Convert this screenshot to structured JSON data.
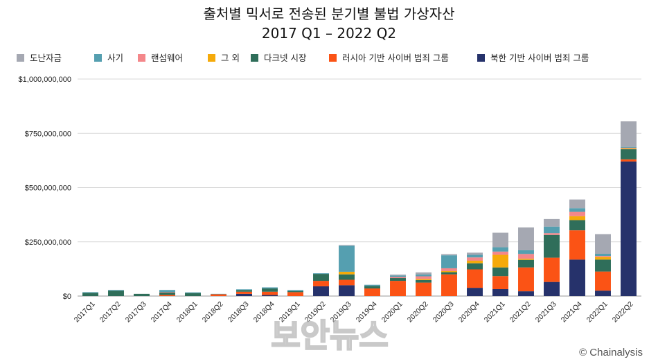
{
  "chart_data": {
    "type": "bar",
    "stacked": true,
    "title_line1": "출처별 믹서로 전송된 분기별 불법 가상자산",
    "title_line2": "2017 Q1 – 2022 Q2",
    "xlabel": "",
    "ylabel": "",
    "ylim": [
      0,
      1000000000
    ],
    "yticks": [
      {
        "value": 0,
        "label": "$0"
      },
      {
        "value": 250000000,
        "label": "$250,000,000"
      },
      {
        "value": 500000000,
        "label": "$500,000,000"
      },
      {
        "value": 750000000,
        "label": "$750,000,000"
      },
      {
        "value": 1000000000,
        "label": "$1,000,000,000"
      }
    ],
    "grid": true,
    "legend_position": "top",
    "categories": [
      "2017Q1",
      "2017Q2",
      "2017Q3",
      "2017Q4",
      "2018Q1",
      "2018Q2",
      "2018Q3",
      "2018Q4",
      "2019Q1",
      "2019Q2",
      "2019Q3",
      "2019Q4",
      "2020Q1",
      "2020Q2",
      "2020Q3",
      "2020Q4",
      "2021Q1",
      "2021Q2",
      "2021Q3",
      "2021Q4",
      "2022Q1",
      "2022Q2"
    ],
    "series": [
      {
        "name": "북한 기반 사이버 범죄 그룹",
        "color": "#26326b",
        "values": [
          0,
          0,
          0,
          0,
          0,
          0,
          10000000,
          5000000,
          0,
          45000000,
          50000000,
          0,
          0,
          0,
          0,
          38000000,
          32000000,
          22000000,
          65000000,
          168000000,
          25000000,
          620000000
        ]
      },
      {
        "name": "러시아 기반 사이버 범죄 그룹",
        "color": "#fb5315",
        "values": [
          0,
          0,
          0,
          5000000,
          0,
          8000000,
          10000000,
          15000000,
          18000000,
          25000000,
          25000000,
          35000000,
          70000000,
          62000000,
          100000000,
          85000000,
          60000000,
          110000000,
          112000000,
          135000000,
          88000000,
          10000000
        ]
      },
      {
        "name": "다크넷 시장",
        "color": "#2f6e5a",
        "values": [
          15000000,
          25000000,
          10000000,
          12000000,
          14000000,
          0,
          8000000,
          15000000,
          5000000,
          32000000,
          25000000,
          12000000,
          13000000,
          12000000,
          10000000,
          28000000,
          40000000,
          35000000,
          105000000,
          47000000,
          55000000,
          47000000
        ]
      },
      {
        "name": "그 외",
        "color": "#f5aa0a",
        "values": [
          0,
          0,
          0,
          0,
          0,
          0,
          0,
          0,
          0,
          0,
          12000000,
          0,
          0,
          5000000,
          5000000,
          12000000,
          58000000,
          5000000,
          0,
          18000000,
          12000000,
          3000000
        ]
      },
      {
        "name": "랜섬웨어",
        "color": "#f4878a",
        "values": [
          0,
          0,
          0,
          2000000,
          0,
          0,
          0,
          0,
          0,
          0,
          0,
          0,
          5000000,
          12000000,
          13000000,
          15000000,
          15000000,
          22000000,
          8000000,
          20000000,
          5000000,
          3000000
        ]
      },
      {
        "name": "사기",
        "color": "#559fb0",
        "values": [
          3000000,
          3000000,
          0,
          9000000,
          3000000,
          2000000,
          3000000,
          5000000,
          5000000,
          3000000,
          120000000,
          5000000,
          7000000,
          8000000,
          60000000,
          12000000,
          20000000,
          17000000,
          30000000,
          17000000,
          10000000,
          5000000
        ]
      },
      {
        "name": "도난자금",
        "color": "#a5a8b2",
        "values": [
          0,
          0,
          0,
          0,
          0,
          0,
          0,
          0,
          0,
          0,
          3000000,
          0,
          4000000,
          10000000,
          5000000,
          10000000,
          67000000,
          105000000,
          35000000,
          40000000,
          90000000,
          117000000
        ]
      }
    ],
    "legend_order": [
      "도난자금",
      "사기",
      "랜섬웨어",
      "그 외",
      "다크넷 시장",
      "러시아 기반 사이버 범죄 그룹",
      "북한 기반 사이버 범죄 그룹"
    ]
  },
  "watermark": "보안뉴스",
  "credit": "© Chainalysis"
}
